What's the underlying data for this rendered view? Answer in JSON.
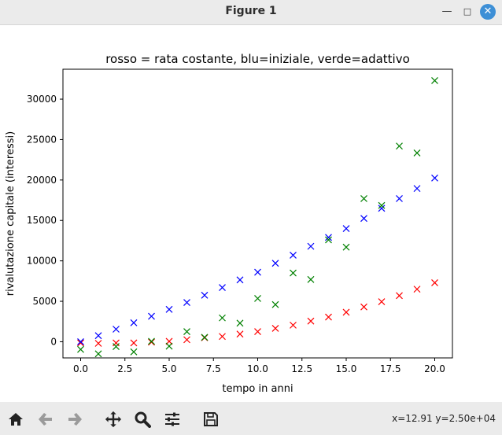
{
  "window": {
    "title": "Figure 1",
    "minimize_icon": "minimize-icon",
    "maximize_icon": "maximize-icon",
    "close_icon": "close-icon"
  },
  "toolbar": {
    "buttons": [
      "home-icon",
      "back-arrow-icon",
      "forward-arrow-icon",
      "pan-move-icon",
      "zoom-magnifier-icon",
      "configure-subplots-icon",
      "save-floppy-icon"
    ],
    "coords_text": "x=12.91 y=2.50e+04"
  },
  "chart_data": {
    "type": "scatter",
    "title": "rosso = rata costante, blu=iniziale, verde=adattivo",
    "xlabel": "tempo in anni",
    "ylabel": "rivalutazione capitale (interessi)",
    "xlim": [
      -1,
      21
    ],
    "ylim": [
      -2000,
      33700
    ],
    "xticks": [
      0.0,
      2.5,
      5.0,
      7.5,
      10.0,
      12.5,
      15.0,
      17.5,
      20.0
    ],
    "xtick_labels": [
      "0.0",
      "2.5",
      "5.0",
      "7.5",
      "10.0",
      "12.5",
      "15.0",
      "17.5",
      "20.0"
    ],
    "yticks": [
      0,
      5000,
      10000,
      15000,
      20000,
      25000,
      30000
    ],
    "ytick_labels": [
      "0",
      "5000",
      "10000",
      "15000",
      "20000",
      "25000",
      "30000"
    ],
    "marker": "x",
    "grid": false,
    "series": [
      {
        "color": "#ff0000",
        "x": [
          0,
          1,
          2,
          3,
          4,
          5,
          6,
          7,
          8,
          9,
          10,
          11,
          12,
          13,
          14,
          15,
          16,
          17,
          18,
          19,
          20
        ],
        "values": [
          -150,
          -200,
          -150,
          -150,
          -50,
          50,
          250,
          500,
          650,
          950,
          1250,
          1650,
          2050,
          2550,
          3050,
          3650,
          4300,
          4950,
          5700,
          6500,
          7300
        ]
      },
      {
        "color": "#0000ff",
        "x": [
          0,
          1,
          2,
          3,
          4,
          5,
          6,
          7,
          8,
          9,
          10,
          11,
          12,
          13,
          14,
          15,
          16,
          17,
          18,
          19,
          20
        ],
        "values": [
          0,
          750,
          1550,
          2350,
          3150,
          4000,
          4850,
          5750,
          6700,
          7650,
          8600,
          9700,
          10700,
          11800,
          12900,
          14000,
          15250,
          16500,
          17700,
          18950,
          20250
        ]
      },
      {
        "color": "#008000",
        "x": [
          0,
          1,
          2,
          3,
          4,
          5,
          6,
          7,
          8,
          9,
          10,
          11,
          12,
          13,
          14,
          15,
          16,
          17,
          18,
          19,
          20
        ],
        "values": [
          -950,
          -1500,
          -600,
          -1250,
          50,
          -550,
          1250,
          550,
          2950,
          2300,
          5350,
          4600,
          8500,
          7700,
          12600,
          11700,
          17700,
          16850,
          24200,
          23350,
          32300
        ]
      }
    ]
  }
}
